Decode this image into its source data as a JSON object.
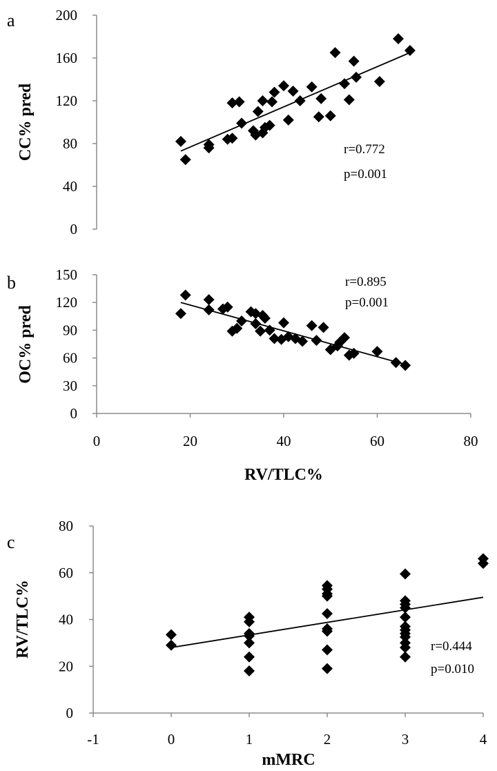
{
  "chart_data": [
    {
      "type": "scatter",
      "panel_label": "a",
      "title": "",
      "xlabel": "",
      "ylabel": "CC% pred",
      "xlim": [
        0,
        80
      ],
      "ylim": [
        0,
        200
      ],
      "yticks": [
        "0",
        "40",
        "80",
        "120",
        "160",
        "200"
      ],
      "xticks": [],
      "points": [
        [
          18,
          82
        ],
        [
          19,
          65
        ],
        [
          24,
          76
        ],
        [
          24,
          79
        ],
        [
          28,
          84
        ],
        [
          29,
          85
        ],
        [
          29,
          118
        ],
        [
          30.5,
          119
        ],
        [
          31,
          99
        ],
        [
          33.5,
          92
        ],
        [
          34,
          88
        ],
        [
          34.5,
          110
        ],
        [
          35.5,
          90
        ],
        [
          35.5,
          120
        ],
        [
          36,
          95
        ],
        [
          37,
          97
        ],
        [
          37.5,
          119
        ],
        [
          38,
          128
        ],
        [
          40,
          134
        ],
        [
          41,
          102
        ],
        [
          42,
          129
        ],
        [
          43.5,
          120
        ],
        [
          46,
          133
        ],
        [
          47.5,
          105
        ],
        [
          48,
          122
        ],
        [
          50,
          106
        ],
        [
          51,
          165
        ],
        [
          53,
          136
        ],
        [
          54,
          121
        ],
        [
          55,
          157
        ],
        [
          55.5,
          142
        ],
        [
          60.5,
          138
        ],
        [
          64.5,
          178
        ],
        [
          67,
          167
        ]
      ],
      "trendline": {
        "x": [
          18,
          67
        ],
        "y": [
          73,
          165
        ]
      },
      "annotations": [
        "r=0.772",
        "p=0.001"
      ]
    },
    {
      "type": "scatter",
      "panel_label": "b",
      "title": "",
      "xlabel": "RV/TLC%",
      "ylabel": "OC% pred",
      "xlim": [
        0,
        80
      ],
      "ylim": [
        0,
        150
      ],
      "yticks": [
        "0",
        "30",
        "60",
        "90",
        "120",
        "150"
      ],
      "xticks": [
        "0",
        "20",
        "40",
        "60",
        "80"
      ],
      "points": [
        [
          18,
          108
        ],
        [
          19,
          128
        ],
        [
          24,
          123
        ],
        [
          24,
          112
        ],
        [
          27,
          113
        ],
        [
          28,
          115
        ],
        [
          29,
          89
        ],
        [
          30,
          92
        ],
        [
          31,
          100
        ],
        [
          33,
          110
        ],
        [
          34,
          97
        ],
        [
          34,
          108
        ],
        [
          35,
          89
        ],
        [
          35.5,
          106
        ],
        [
          36,
          103
        ],
        [
          37,
          90
        ],
        [
          38,
          81
        ],
        [
          39.5,
          80
        ],
        [
          40,
          98
        ],
        [
          41,
          83
        ],
        [
          42.5,
          81
        ],
        [
          44,
          78
        ],
        [
          46,
          95
        ],
        [
          47,
          79
        ],
        [
          48.5,
          93
        ],
        [
          50,
          69
        ],
        [
          51.5,
          73
        ],
        [
          52,
          77
        ],
        [
          53,
          82
        ],
        [
          54,
          63
        ],
        [
          55,
          65
        ],
        [
          60,
          67
        ],
        [
          64,
          55
        ],
        [
          66,
          52
        ]
      ],
      "trendline": {
        "x": [
          18,
          66
        ],
        "y": [
          120,
          53
        ]
      },
      "annotations": [
        "r=0.895",
        "p=0.001"
      ]
    },
    {
      "type": "scatter",
      "panel_label": "c",
      "title": "",
      "xlabel": "mMRC",
      "ylabel": "RV/TLC%",
      "xlim": [
        -1,
        4
      ],
      "ylim": [
        0,
        80
      ],
      "yticks": [
        "0",
        "20",
        "40",
        "60",
        "80"
      ],
      "xticks": [
        "-1",
        "0",
        "1",
        "2",
        "3",
        "4"
      ],
      "points": [
        [
          0,
          33.5
        ],
        [
          0,
          29
        ],
        [
          1,
          41
        ],
        [
          1,
          39
        ],
        [
          1,
          34
        ],
        [
          1,
          33
        ],
        [
          1,
          30
        ],
        [
          1,
          24
        ],
        [
          1,
          18
        ],
        [
          2,
          54.5
        ],
        [
          2,
          53
        ],
        [
          2,
          51
        ],
        [
          2,
          50
        ],
        [
          2,
          42.5
        ],
        [
          2,
          36
        ],
        [
          2,
          35
        ],
        [
          2,
          27
        ],
        [
          2,
          19
        ],
        [
          3,
          59.5
        ],
        [
          3,
          48
        ],
        [
          3,
          46.5
        ],
        [
          3,
          45
        ],
        [
          3,
          41
        ],
        [
          3,
          37
        ],
        [
          3,
          35.5
        ],
        [
          3,
          34
        ],
        [
          3,
          32.5
        ],
        [
          3,
          30
        ],
        [
          3,
          28
        ],
        [
          3,
          24
        ],
        [
          4,
          66
        ],
        [
          4,
          64
        ]
      ],
      "trendline": {
        "x": [
          0,
          4
        ],
        "y": [
          28,
          49.5
        ]
      },
      "annotations": [
        "r=0.444",
        "p=0.010"
      ]
    }
  ]
}
